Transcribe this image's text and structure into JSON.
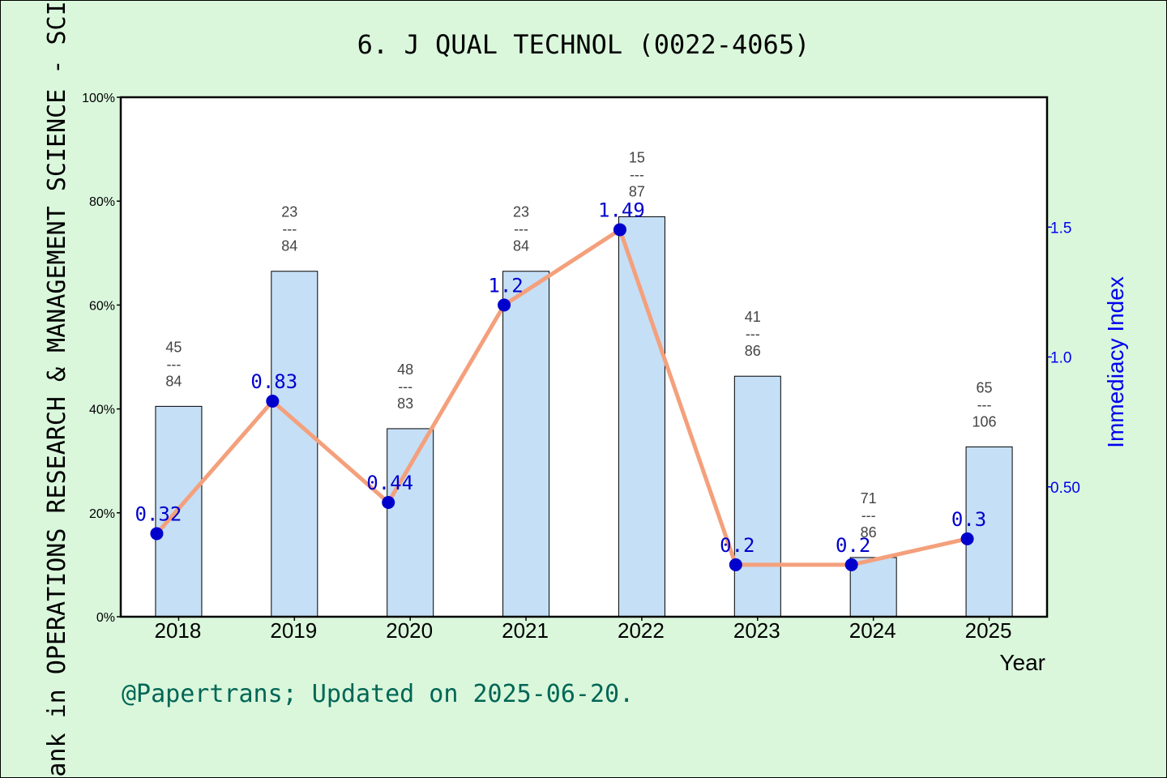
{
  "chart_data": {
    "type": "bar",
    "title": "6. J QUAL TECHNOL (0022-4065)",
    "categories": [
      "2018",
      "2019",
      "2020",
      "2021",
      "2022",
      "2023",
      "2024",
      "2025"
    ],
    "series": [
      {
        "type": "bar",
        "axis": "left",
        "values": [
          40.5,
          66.5,
          36.2,
          66.5,
          77.0,
          46.3,
          11.4,
          32.7
        ],
        "rank_labels": [
          {
            "rank": "45",
            "total": "84"
          },
          {
            "rank": "23",
            "total": "84"
          },
          {
            "rank": "48",
            "total": "83"
          },
          {
            "rank": "23",
            "total": "84"
          },
          {
            "rank": "15",
            "total": "87"
          },
          {
            "rank": "41",
            "total": "86"
          },
          {
            "rank": "71",
            "total": "86"
          },
          {
            "rank": "65",
            "total": "106"
          }
        ]
      },
      {
        "type": "line",
        "axis": "right",
        "values": [
          0.32,
          0.83,
          0.44,
          1.2,
          1.49,
          0.2,
          0.2,
          0.3
        ],
        "labels": [
          "0.32",
          "0.83",
          "0.44",
          "1.2",
          "1.49",
          "0.2",
          "0.2",
          "0.3"
        ]
      }
    ],
    "xlabel": "Year",
    "ylabel_left": "Rank in OPERATIONS RESEARCH & MANAGEMENT SCIENCE - SCIE",
    "ylabel_right": "Immediacy Index",
    "left_ticks": [
      "0%",
      "20%",
      "40%",
      "60%",
      "80%",
      "100%"
    ],
    "right_ticks": [
      "0.50",
      "1.0",
      "1.5"
    ],
    "ylim_left": [
      0,
      100
    ],
    "ylim_right": [
      0,
      2.0
    ],
    "grid": false,
    "credit": "@Papertrans; Updated on 2025-06-20.",
    "colors": {
      "background": "#daf7dc",
      "bar_fill": "#c5dff6",
      "line": "#f4a07c",
      "marker": "#0000cc",
      "right_axis_text": "#0000ee",
      "credit": "#006655"
    }
  }
}
